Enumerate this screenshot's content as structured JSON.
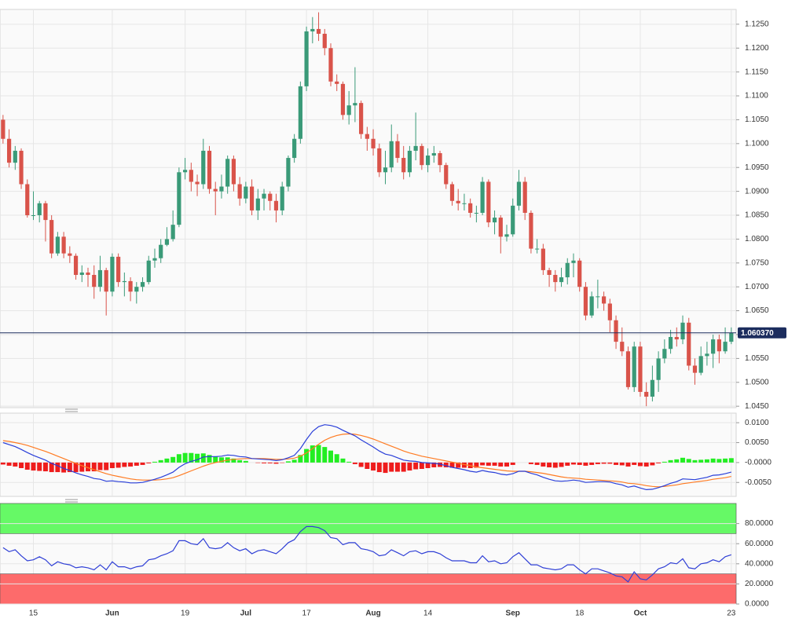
{
  "chart_data": [
    {
      "type": "candlestick",
      "open": [
        1.105,
        1.101,
        1.096,
        1.0985,
        1.0915,
        1.085,
        1.085,
        1.0875,
        1.084,
        1.077,
        1.0805,
        1.077,
        1.0765,
        1.0725,
        1.073,
        1.0725,
        1.07,
        1.0735,
        1.069,
        1.0763,
        1.071,
        1.0712,
        1.069,
        1.07,
        1.071,
        1.0755,
        1.076,
        1.0788,
        1.08,
        1.083,
        1.094,
        1.0945,
        1.092,
        1.0915,
        1.0985,
        1.0905,
        1.09,
        1.091,
        1.0968,
        1.0915,
        1.0885,
        1.091,
        1.086,
        1.0885,
        1.0895,
        1.088,
        1.086,
        1.091,
        1.097,
        1.101,
        1.112,
        1.1235,
        1.124,
        1.123,
        1.12,
        1.113,
        1.1125,
        1.106,
        1.108,
        1.1085,
        1.102,
        1.101,
        1.099,
        1.094,
        1.095,
        1.1005,
        1.097,
        1.094,
        1.0985,
        1.0995,
        1.0955,
        1.0975,
        1.098,
        1.0955,
        1.0915,
        1.088,
        1.0875,
        1.0875,
        1.0855,
        1.0855,
        1.092,
        1.0835,
        1.0845,
        1.0805,
        1.081,
        1.087,
        1.092,
        1.0855,
        1.078,
        1.078,
        1.0735,
        1.0725,
        1.071,
        1.072,
        1.075,
        1.0755,
        1.07,
        1.064,
        1.068,
        1.068,
        1.0665,
        1.063,
        1.0585,
        1.0565,
        1.049,
        1.0575,
        1.048,
        1.047,
        1.0505,
        1.055,
        1.057,
        1.0595,
        1.059,
        1.0625,
        1.0535,
        1.052,
        1.0555,
        1.056,
        1.059,
        1.0565,
        1.0585
      ],
      "high": [
        1.106,
        1.103,
        1.0995,
        1.099,
        1.0925,
        1.09,
        1.088,
        1.088,
        1.085,
        1.0815,
        1.0815,
        1.0785,
        1.077,
        1.0745,
        1.074,
        1.0745,
        1.0765,
        1.074,
        1.077,
        1.077,
        1.073,
        1.072,
        1.071,
        1.072,
        1.0765,
        1.078,
        1.08,
        1.0825,
        1.086,
        1.095,
        1.097,
        1.096,
        1.0935,
        1.101,
        1.0995,
        1.092,
        1.0935,
        1.0975,
        1.0975,
        1.093,
        1.092,
        1.0925,
        1.0905,
        1.0905,
        1.09,
        1.0895,
        1.092,
        1.0975,
        1.102,
        1.113,
        1.1245,
        1.1265,
        1.1275,
        1.124,
        1.121,
        1.1145,
        1.113,
        1.111,
        1.116,
        1.109,
        1.1035,
        1.103,
        1.1,
        1.0985,
        1.104,
        1.102,
        1.0995,
        1.0995,
        1.1065,
        1.1,
        1.099,
        1.0995,
        1.0985,
        1.096,
        1.092,
        1.0905,
        1.0895,
        1.0885,
        1.087,
        1.093,
        1.0925,
        1.086,
        1.085,
        1.083,
        1.0885,
        1.0945,
        1.093,
        1.086,
        1.08,
        1.079,
        1.074,
        1.0735,
        1.074,
        1.076,
        1.077,
        1.076,
        1.071,
        1.069,
        1.0715,
        1.069,
        1.0675,
        1.064,
        1.0615,
        1.0575,
        1.0585,
        1.0585,
        1.05,
        1.0535,
        1.0565,
        1.059,
        1.061,
        1.0615,
        1.064,
        1.0635,
        1.055,
        1.0575,
        1.0585,
        1.06,
        1.06,
        1.0615,
        1.0615
      ],
      "low": [
        1.1,
        1.095,
        1.0945,
        1.0905,
        1.0845,
        1.084,
        1.0835,
        1.0795,
        1.076,
        1.0765,
        1.076,
        1.075,
        1.0715,
        1.071,
        1.07,
        1.0675,
        1.069,
        1.064,
        1.068,
        1.07,
        1.068,
        1.067,
        1.0665,
        1.069,
        1.0705,
        1.074,
        1.075,
        1.0785,
        1.0795,
        1.0825,
        1.0925,
        1.09,
        1.089,
        1.0905,
        1.0895,
        1.085,
        1.0885,
        1.0895,
        1.09,
        1.087,
        1.0875,
        1.085,
        1.084,
        1.086,
        1.086,
        1.0835,
        1.085,
        1.09,
        1.096,
        1.1,
        1.111,
        1.121,
        1.1215,
        1.1185,
        1.112,
        1.111,
        1.105,
        1.104,
        1.1045,
        1.101,
        1.0985,
        1.0975,
        1.093,
        1.0915,
        1.094,
        1.096,
        1.0925,
        1.093,
        1.0965,
        1.0945,
        1.094,
        1.096,
        1.094,
        1.0905,
        1.087,
        1.086,
        1.086,
        1.0845,
        1.0835,
        1.085,
        1.0825,
        1.081,
        1.077,
        1.0795,
        1.0805,
        1.086,
        1.084,
        1.077,
        1.077,
        1.0725,
        1.07,
        1.069,
        1.07,
        1.0705,
        1.072,
        1.069,
        1.063,
        1.0635,
        1.0655,
        1.065,
        1.0605,
        1.057,
        1.0555,
        1.0485,
        1.048,
        1.047,
        1.045,
        1.046,
        1.048,
        1.054,
        1.056,
        1.0575,
        1.058,
        1.0525,
        1.0495,
        1.0515,
        1.0535,
        1.053,
        1.054,
        1.056,
        1.058
      ],
      "close": [
        1.101,
        1.096,
        1.0985,
        1.0915,
        1.085,
        1.085,
        1.0875,
        1.084,
        1.077,
        1.0805,
        1.077,
        1.0765,
        1.0725,
        1.073,
        1.0725,
        1.07,
        1.0735,
        1.069,
        1.0763,
        1.071,
        1.0712,
        1.069,
        1.07,
        1.071,
        1.0755,
        1.076,
        1.0788,
        1.08,
        1.083,
        1.094,
        1.0945,
        1.092,
        1.0915,
        1.0985,
        1.0905,
        1.09,
        1.091,
        1.0968,
        1.0915,
        1.0885,
        1.091,
        1.086,
        1.0885,
        1.0895,
        1.088,
        1.086,
        1.091,
        1.097,
        1.101,
        1.112,
        1.1235,
        1.124,
        1.123,
        1.12,
        1.113,
        1.1125,
        1.106,
        1.108,
        1.1085,
        1.102,
        1.101,
        1.099,
        1.094,
        1.095,
        1.1005,
        1.097,
        1.094,
        1.0985,
        1.0995,
        1.0955,
        1.0975,
        1.098,
        1.0955,
        1.0915,
        1.088,
        1.0875,
        1.0875,
        1.0855,
        1.0855,
        1.092,
        1.0835,
        1.0845,
        1.0805,
        1.081,
        1.087,
        1.092,
        1.0855,
        1.078,
        1.078,
        1.0735,
        1.0725,
        1.071,
        1.072,
        1.075,
        1.0755,
        1.07,
        1.064,
        1.068,
        1.068,
        1.0665,
        1.063,
        1.0585,
        1.0565,
        1.049,
        1.0575,
        1.048,
        1.047,
        1.0505,
        1.055,
        1.057,
        1.0595,
        1.059,
        1.0625,
        1.0535,
        1.052,
        1.0555,
        1.056,
        1.059,
        1.0565,
        1.0585,
        1.06037
      ],
      "up_color": "#3a9a78",
      "down_color": "#d9534a",
      "xlim": [
        -0.5,
        120.8
      ],
      "ylim": [
        1.0447,
        1.1281
      ],
      "yticks": [
        {
          "value": 1.045,
          "label": "1.0450"
        },
        {
          "value": 1.05,
          "label": "1.0500"
        },
        {
          "value": 1.055,
          "label": "1.0550"
        },
        {
          "value": 1.06,
          "label": "1.0600"
        },
        {
          "value": 1.065,
          "label": "1.0650"
        },
        {
          "value": 1.07,
          "label": "1.0700"
        },
        {
          "value": 1.075,
          "label": "1.0750"
        },
        {
          "value": 1.08,
          "label": "1.0800"
        },
        {
          "value": 1.085,
          "label": "1.0850"
        },
        {
          "value": 1.09,
          "label": "1.0900"
        },
        {
          "value": 1.095,
          "label": "1.0950"
        },
        {
          "value": 1.1,
          "label": "1.1000"
        },
        {
          "value": 1.105,
          "label": "1.1050"
        },
        {
          "value": 1.11,
          "label": "1.1100"
        },
        {
          "value": 1.115,
          "label": "1.1150"
        },
        {
          "value": 1.12,
          "label": "1.1200"
        },
        {
          "value": 1.125,
          "label": "1.1250"
        }
      ],
      "grid": true,
      "last_price": {
        "value": 1.06037,
        "label": "1.060370"
      },
      "last_price_color": "#1c2d5e"
    },
    {
      "type": "macd",
      "macd": {
        "color": "#2a3fd9",
        "values": [
          0.005,
          0.0045,
          0.004,
          0.0033,
          0.0025,
          0.0018,
          0.0012,
          0.0006,
          -0.0002,
          -0.0008,
          -0.0015,
          -0.002,
          -0.0026,
          -0.0031,
          -0.0035,
          -0.004,
          -0.0042,
          -0.0047,
          -0.0046,
          -0.0048,
          -0.0049,
          -0.0051,
          -0.0051,
          -0.005,
          -0.0046,
          -0.0042,
          -0.0037,
          -0.0031,
          -0.0024,
          -0.0012,
          -0.0003,
          0.0003,
          0.0007,
          0.0014,
          0.0015,
          0.0015,
          0.0016,
          0.0019,
          0.0018,
          0.0015,
          0.0014,
          0.001,
          0.0009,
          0.0008,
          0.0007,
          0.0005,
          0.0007,
          0.0012,
          0.0018,
          0.0035,
          0.0058,
          0.0078,
          0.009,
          0.0095,
          0.0093,
          0.0089,
          0.0081,
          0.0074,
          0.0067,
          0.0057,
          0.0048,
          0.0039,
          0.0029,
          0.0021,
          0.0018,
          0.0012,
          0.0006,
          0.0004,
          0.0003,
          0,
          -0.0001,
          -0.0002,
          -0.0004,
          -0.0008,
          -0.0012,
          -0.0015,
          -0.0018,
          -0.0022,
          -0.0024,
          -0.002,
          -0.0023,
          -0.0025,
          -0.0029,
          -0.0031,
          -0.0028,
          -0.0022,
          -0.0022,
          -0.0027,
          -0.0031,
          -0.0037,
          -0.0042,
          -0.0046,
          -0.0047,
          -0.0046,
          -0.0044,
          -0.0046,
          -0.005,
          -0.0049,
          -0.0048,
          -0.0048,
          -0.0049,
          -0.0053,
          -0.0056,
          -0.0062,
          -0.0059,
          -0.0064,
          -0.0068,
          -0.0067,
          -0.0063,
          -0.0058,
          -0.0052,
          -0.0048,
          -0.0041,
          -0.0042,
          -0.0043,
          -0.004,
          -0.0037,
          -0.0032,
          -0.0031,
          -0.0028,
          -0.0024
        ]
      },
      "signal": {
        "color": "#ff7b22",
        "values": [
          0.0055,
          0.0053,
          0.005,
          0.0047,
          0.0043,
          0.0038,
          0.0033,
          0.0028,
          0.0022,
          0.0016,
          0.001,
          0.0004,
          -0.0002,
          -0.0008,
          -0.0013,
          -0.0018,
          -0.0023,
          -0.0028,
          -0.0032,
          -0.0035,
          -0.0038,
          -0.0041,
          -0.0043,
          -0.0044,
          -0.0044,
          -0.0044,
          -0.0043,
          -0.0041,
          -0.0038,
          -0.0033,
          -0.0027,
          -0.0021,
          -0.0015,
          -0.0009,
          -0.0004,
          0,
          0.0003,
          0.0006,
          0.0008,
          0.0009,
          0.001,
          0.001,
          0.001,
          0.001,
          0.0009,
          0.0008,
          0.0008,
          0.0009,
          0.0011,
          0.0016,
          0.0024,
          0.0035,
          0.0046,
          0.0056,
          0.0063,
          0.0068,
          0.0071,
          0.0072,
          0.0071,
          0.0068,
          0.0064,
          0.0059,
          0.0053,
          0.0047,
          0.0041,
          0.0035,
          0.0029,
          0.0024,
          0.002,
          0.0016,
          0.0013,
          0.001,
          0.0007,
          0.0004,
          0.0001,
          -0.0002,
          -0.0005,
          -0.0008,
          -0.0011,
          -0.0013,
          -0.0015,
          -0.0017,
          -0.0019,
          -0.0021,
          -0.0022,
          -0.0022,
          -0.0022,
          -0.0023,
          -0.0025,
          -0.0027,
          -0.003,
          -0.0033,
          -0.0036,
          -0.0038,
          -0.0039,
          -0.004,
          -0.0042,
          -0.0043,
          -0.0044,
          -0.0045,
          -0.0046,
          -0.0047,
          -0.0049,
          -0.0052,
          -0.0053,
          -0.0055,
          -0.0058,
          -0.006,
          -0.0061,
          -0.006,
          -0.0058,
          -0.0056,
          -0.0053,
          -0.0051,
          -0.0049,
          -0.0047,
          -0.0045,
          -0.0042,
          -0.004,
          -0.0038,
          -0.0035
        ]
      },
      "histogram": {
        "up_color": "#22ee22",
        "down_color": "#ee1c1c",
        "values": [
          -0.0005,
          -0.0008,
          -0.001,
          -0.0014,
          -0.0018,
          -0.002,
          -0.0021,
          -0.0022,
          -0.0024,
          -0.0024,
          -0.0025,
          -0.0024,
          -0.0024,
          -0.0023,
          -0.0022,
          -0.0022,
          -0.0019,
          -0.0019,
          -0.0014,
          -0.0013,
          -0.0011,
          -0.001,
          -0.0008,
          -0.0006,
          -0.0002,
          0.0002,
          0.0006,
          0.001,
          0.0014,
          0.0021,
          0.0024,
          0.0024,
          0.0022,
          0.0023,
          0.0019,
          0.0015,
          0.0013,
          0.0013,
          0.001,
          0.0006,
          0.0004,
          0,
          -0.0001,
          -0.0002,
          -0.0002,
          -0.0003,
          -0.0001,
          0.0003,
          0.0007,
          0.0019,
          0.0034,
          0.0043,
          0.0044,
          0.0039,
          0.003,
          0.0021,
          0.001,
          0.0002,
          -0.0004,
          -0.0011,
          -0.0016,
          -0.002,
          -0.0024,
          -0.0026,
          -0.0023,
          -0.0023,
          -0.0023,
          -0.002,
          -0.0017,
          -0.0016,
          -0.0014,
          -0.0012,
          -0.0011,
          -0.0012,
          -0.0013,
          -0.0013,
          -0.0013,
          -0.0014,
          -0.0013,
          -0.0007,
          -0.0008,
          -0.0008,
          -0.001,
          -0.001,
          -0.0006,
          0,
          0,
          -0.0004,
          -0.0006,
          -0.001,
          -0.0012,
          -0.0013,
          -0.0011,
          -0.0008,
          -0.0005,
          -0.0006,
          -0.0008,
          -0.0006,
          -0.0004,
          -0.0003,
          -0.0003,
          -0.0006,
          -0.0007,
          -0.001,
          -0.0006,
          -0.0009,
          -0.001,
          -0.0007,
          -0.0002,
          0.0002,
          0.0006,
          0.0008,
          0.0012,
          0.0009,
          0.0006,
          0.0007,
          0.0008,
          0.001,
          0.0009,
          0.001,
          0.0011
        ]
      },
      "ylim": [
        -0.0085,
        0.0124
      ],
      "yticks": [
        {
          "value": 0.01,
          "label": "0.0100"
        },
        {
          "value": 0.005,
          "label": "0.0050"
        },
        {
          "value": 0,
          "label": "-0.0000"
        },
        {
          "value": -0.005,
          "label": "-0.0050"
        }
      ]
    },
    {
      "type": "rsi",
      "color": "#2f3fd6",
      "values": [
        56,
        52,
        54,
        48,
        43,
        44,
        47,
        44,
        38,
        42,
        40,
        39,
        36,
        37,
        36,
        34,
        39,
        34,
        42,
        37,
        37,
        35,
        37,
        38,
        44,
        45,
        48,
        50,
        53,
        63,
        63,
        60,
        59,
        65,
        56,
        55,
        56,
        61,
        56,
        53,
        55,
        50,
        53,
        54,
        52,
        50,
        55,
        61,
        64,
        72,
        77,
        77,
        76,
        73,
        66,
        65,
        59,
        61,
        61,
        55,
        54,
        52,
        48,
        49,
        54,
        51,
        48,
        52,
        53,
        50,
        52,
        52,
        50,
        46,
        43,
        43,
        43,
        41,
        41,
        48,
        42,
        43,
        40,
        41,
        47,
        51,
        45,
        39,
        39,
        36,
        35,
        34,
        35,
        39,
        39,
        34,
        30,
        35,
        35,
        33,
        31,
        28,
        27,
        22,
        32,
        25,
        24,
        29,
        35,
        37,
        41,
        40,
        45,
        36,
        35,
        40,
        41,
        44,
        42,
        47,
        49
      ],
      "bands": [
        {
          "from": 70,
          "to": 100,
          "color": "#66f966"
        },
        {
          "from": 0,
          "to": 30,
          "color": "#fd6b6b"
        }
      ],
      "ylim": [
        0,
        100
      ],
      "yticks": [
        {
          "value": 80,
          "label": "80.0000"
        },
        {
          "value": 60,
          "label": "60.0000"
        },
        {
          "value": 40,
          "label": "40.0000"
        },
        {
          "value": 20,
          "label": "20.0000"
        },
        {
          "value": 0,
          "label": "0.0000"
        }
      ],
      "xticks": [
        {
          "value": 5,
          "label": "15"
        },
        {
          "value": 18,
          "label": "Jun"
        },
        {
          "value": 30,
          "label": "19"
        },
        {
          "value": 40,
          "label": "Jul"
        },
        {
          "value": 50,
          "label": "17"
        },
        {
          "value": 61,
          "label": "Aug"
        },
        {
          "value": 70,
          "label": "14"
        },
        {
          "value": 84,
          "label": "Sep"
        },
        {
          "value": 95,
          "label": "18"
        },
        {
          "value": 105,
          "label": "Oct"
        },
        {
          "value": 120,
          "label": "23"
        }
      ]
    }
  ]
}
